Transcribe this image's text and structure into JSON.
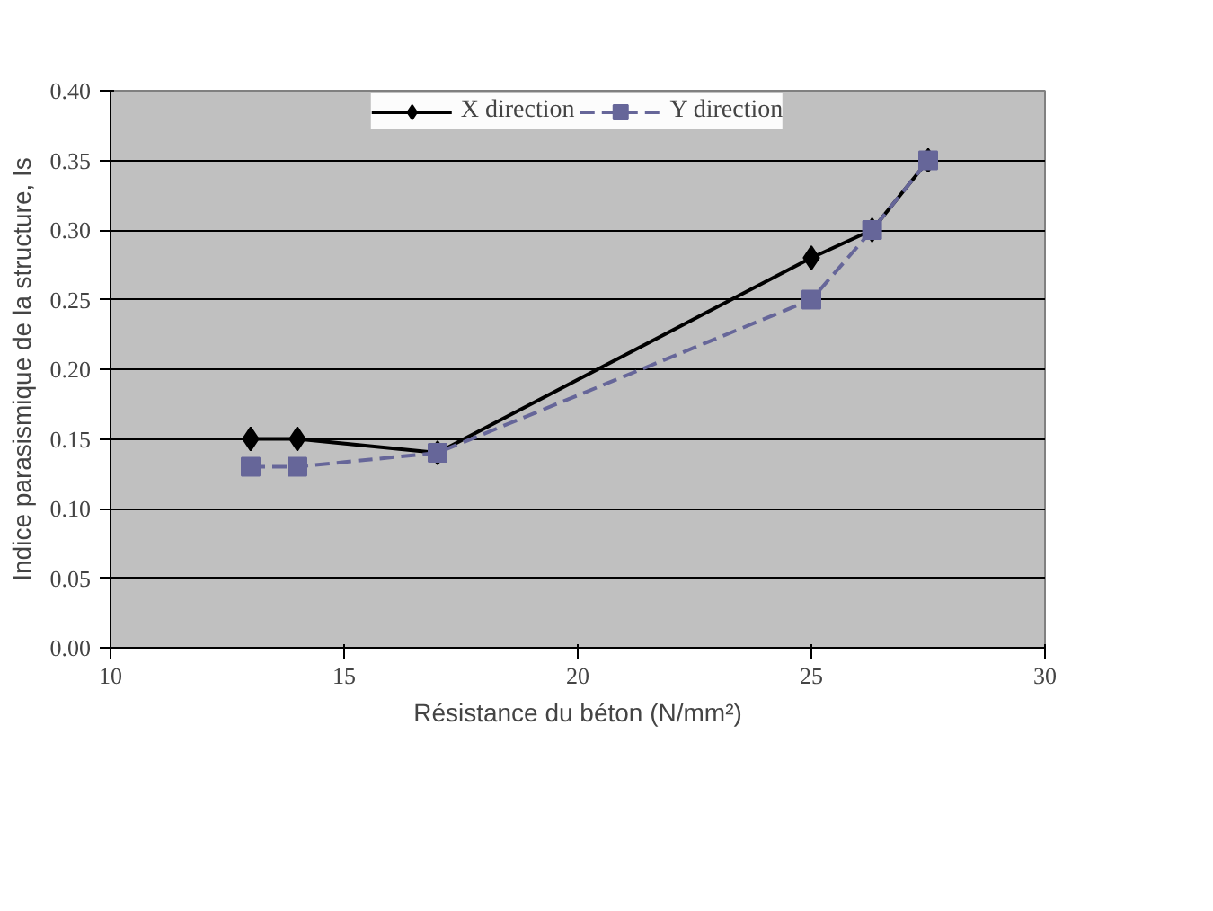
{
  "chart_data": {
    "type": "line",
    "xlabel": "Résistance du béton (N/mm²)",
    "ylabel": "Indice parasismique de la structure, Is",
    "xlim": [
      10,
      30
    ],
    "xticks": [
      10,
      15,
      20,
      25,
      30
    ],
    "ylim": [
      0,
      0.4
    ],
    "yticks": [
      {
        "value": 0,
        "label": "0.00"
      },
      {
        "value": 0.05,
        "label": "0.05"
      },
      {
        "value": 0.1,
        "label": "0.10"
      },
      {
        "value": 0.15,
        "label": "0.15"
      },
      {
        "value": 0.2,
        "label": "0.20"
      },
      {
        "value": 0.25,
        "label": "0.25"
      },
      {
        "value": 0.3,
        "label": "0.30"
      },
      {
        "value": 0.35,
        "label": "0.35"
      },
      {
        "value": 0.4,
        "label": "0.40"
      }
    ],
    "grid": "y",
    "legend": "top",
    "series": [
      {
        "name": "X direction",
        "color": "#000000",
        "marker": "diamond",
        "line_style": "solid",
        "x": [
          13,
          14,
          17,
          25,
          26.3,
          27.5
        ],
        "values": [
          0.15,
          0.15,
          0.14,
          0.28,
          0.3,
          0.35
        ]
      },
      {
        "name": "Y direction",
        "color": "#666699",
        "marker": "square",
        "line_style": "dashed",
        "x": [
          13,
          14,
          17,
          25,
          26.3,
          27.5
        ],
        "values": [
          0.13,
          0.13,
          0.14,
          0.25,
          0.3,
          0.35
        ]
      }
    ]
  }
}
